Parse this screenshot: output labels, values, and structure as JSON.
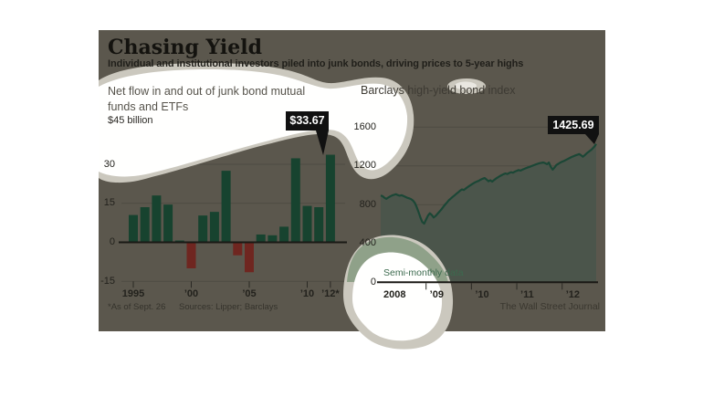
{
  "page": {
    "title": "Chasing Yield",
    "subtitle": "Individual and institutional investors piled into junk bonds, driving prices to 5-year highs",
    "credit": "The Wall Street Journal"
  },
  "colors": {
    "panel_bg": "#5b574d",
    "bar_positive": "#17432f",
    "bar_negative": "#6f2620",
    "line": "#1b4736",
    "area_fill": "#4b554b",
    "grid": "#4e4b43",
    "axis": "#1a1915",
    "tick": "#2a2924",
    "blob_gray": "#cbc8be",
    "blob_white": "#fffffe",
    "blob_sage": "#8fa189",
    "callout_bg": "#111111",
    "callout_text": "#ffffff"
  },
  "chart_data": [
    {
      "type": "bar",
      "title": "Net flow in and out of junk bond mutual funds and ETFs",
      "unit_label": "$45 billion",
      "categories": [
        1995,
        1996,
        1997,
        1998,
        1999,
        2000,
        2001,
        2002,
        2003,
        2004,
        2005,
        2006,
        2007,
        2008,
        2009,
        2010,
        2011,
        2012
      ],
      "values": [
        10.5,
        13.5,
        18,
        14.5,
        0.7,
        -10,
        10.3,
        11.7,
        27.5,
        -5,
        -11.5,
        3,
        2.7,
        6,
        32.3,
        14,
        13.5,
        33.67
      ],
      "ylim": [
        -15,
        45
      ],
      "y_ticks": [
        30,
        15,
        0,
        -15
      ],
      "y_tick_labels": [
        "30",
        "15",
        "0",
        "-15"
      ],
      "x_tick_years": [
        1995,
        2000,
        2005,
        2010,
        2012
      ],
      "x_tick_labels": [
        "1995",
        "’00",
        "’05",
        "’10",
        "’12*"
      ],
      "callout": {
        "label": "$33.67",
        "year": 2012
      },
      "footnote": "*As of Sept. 26",
      "sources": "Sources: Lipper; Barclays",
      "grid": true,
      "legend": "none"
    },
    {
      "type": "area",
      "title": "Barclays high-yield bond index",
      "annotation": "Semi-monthly data",
      "x_start": 2008,
      "x_end": 2012.75,
      "points_per_year": 24,
      "ylim": [
        0,
        1700
      ],
      "y_ticks": [
        1600,
        1200,
        800,
        400,
        0
      ],
      "y_tick_labels": [
        "1600",
        "1200",
        "800",
        "400",
        "0"
      ],
      "x_tick_years": [
        2009,
        2010,
        2011,
        2012
      ],
      "x_tick_labels": [
        "’09",
        "’10",
        "’11",
        "’12"
      ],
      "x_start_label": "2008",
      "callout": {
        "label": "1425.69",
        "value": 1425.69
      },
      "values": [
        895,
        888,
        872,
        860,
        874,
        886,
        895,
        902,
        908,
        900,
        893,
        898,
        890,
        882,
        872,
        866,
        858,
        844,
        820,
        778,
        726,
        668,
        622,
        605,
        648,
        688,
        712,
        695,
        668,
        683,
        705,
        728,
        748,
        775,
        800,
        822,
        845,
        862,
        880,
        895,
        912,
        928,
        945,
        958,
        952,
        968,
        982,
        995,
        1008,
        1020,
        1032,
        1040,
        1048,
        1060,
        1068,
        1075,
        1060,
        1042,
        1052,
        1038,
        1055,
        1070,
        1082,
        1095,
        1105,
        1115,
        1122,
        1116,
        1128,
        1135,
        1130,
        1142,
        1150,
        1158,
        1152,
        1162,
        1170,
        1178,
        1186,
        1192,
        1200,
        1208,
        1215,
        1222,
        1228,
        1232,
        1236,
        1228,
        1218,
        1235,
        1190,
        1162,
        1185,
        1210,
        1222,
        1235,
        1244,
        1252,
        1262,
        1272,
        1282,
        1292,
        1300,
        1308,
        1315,
        1322,
        1310,
        1295,
        1312,
        1330,
        1345,
        1360,
        1378,
        1398,
        1425.69
      ],
      "grid": true,
      "legend": "none"
    }
  ]
}
